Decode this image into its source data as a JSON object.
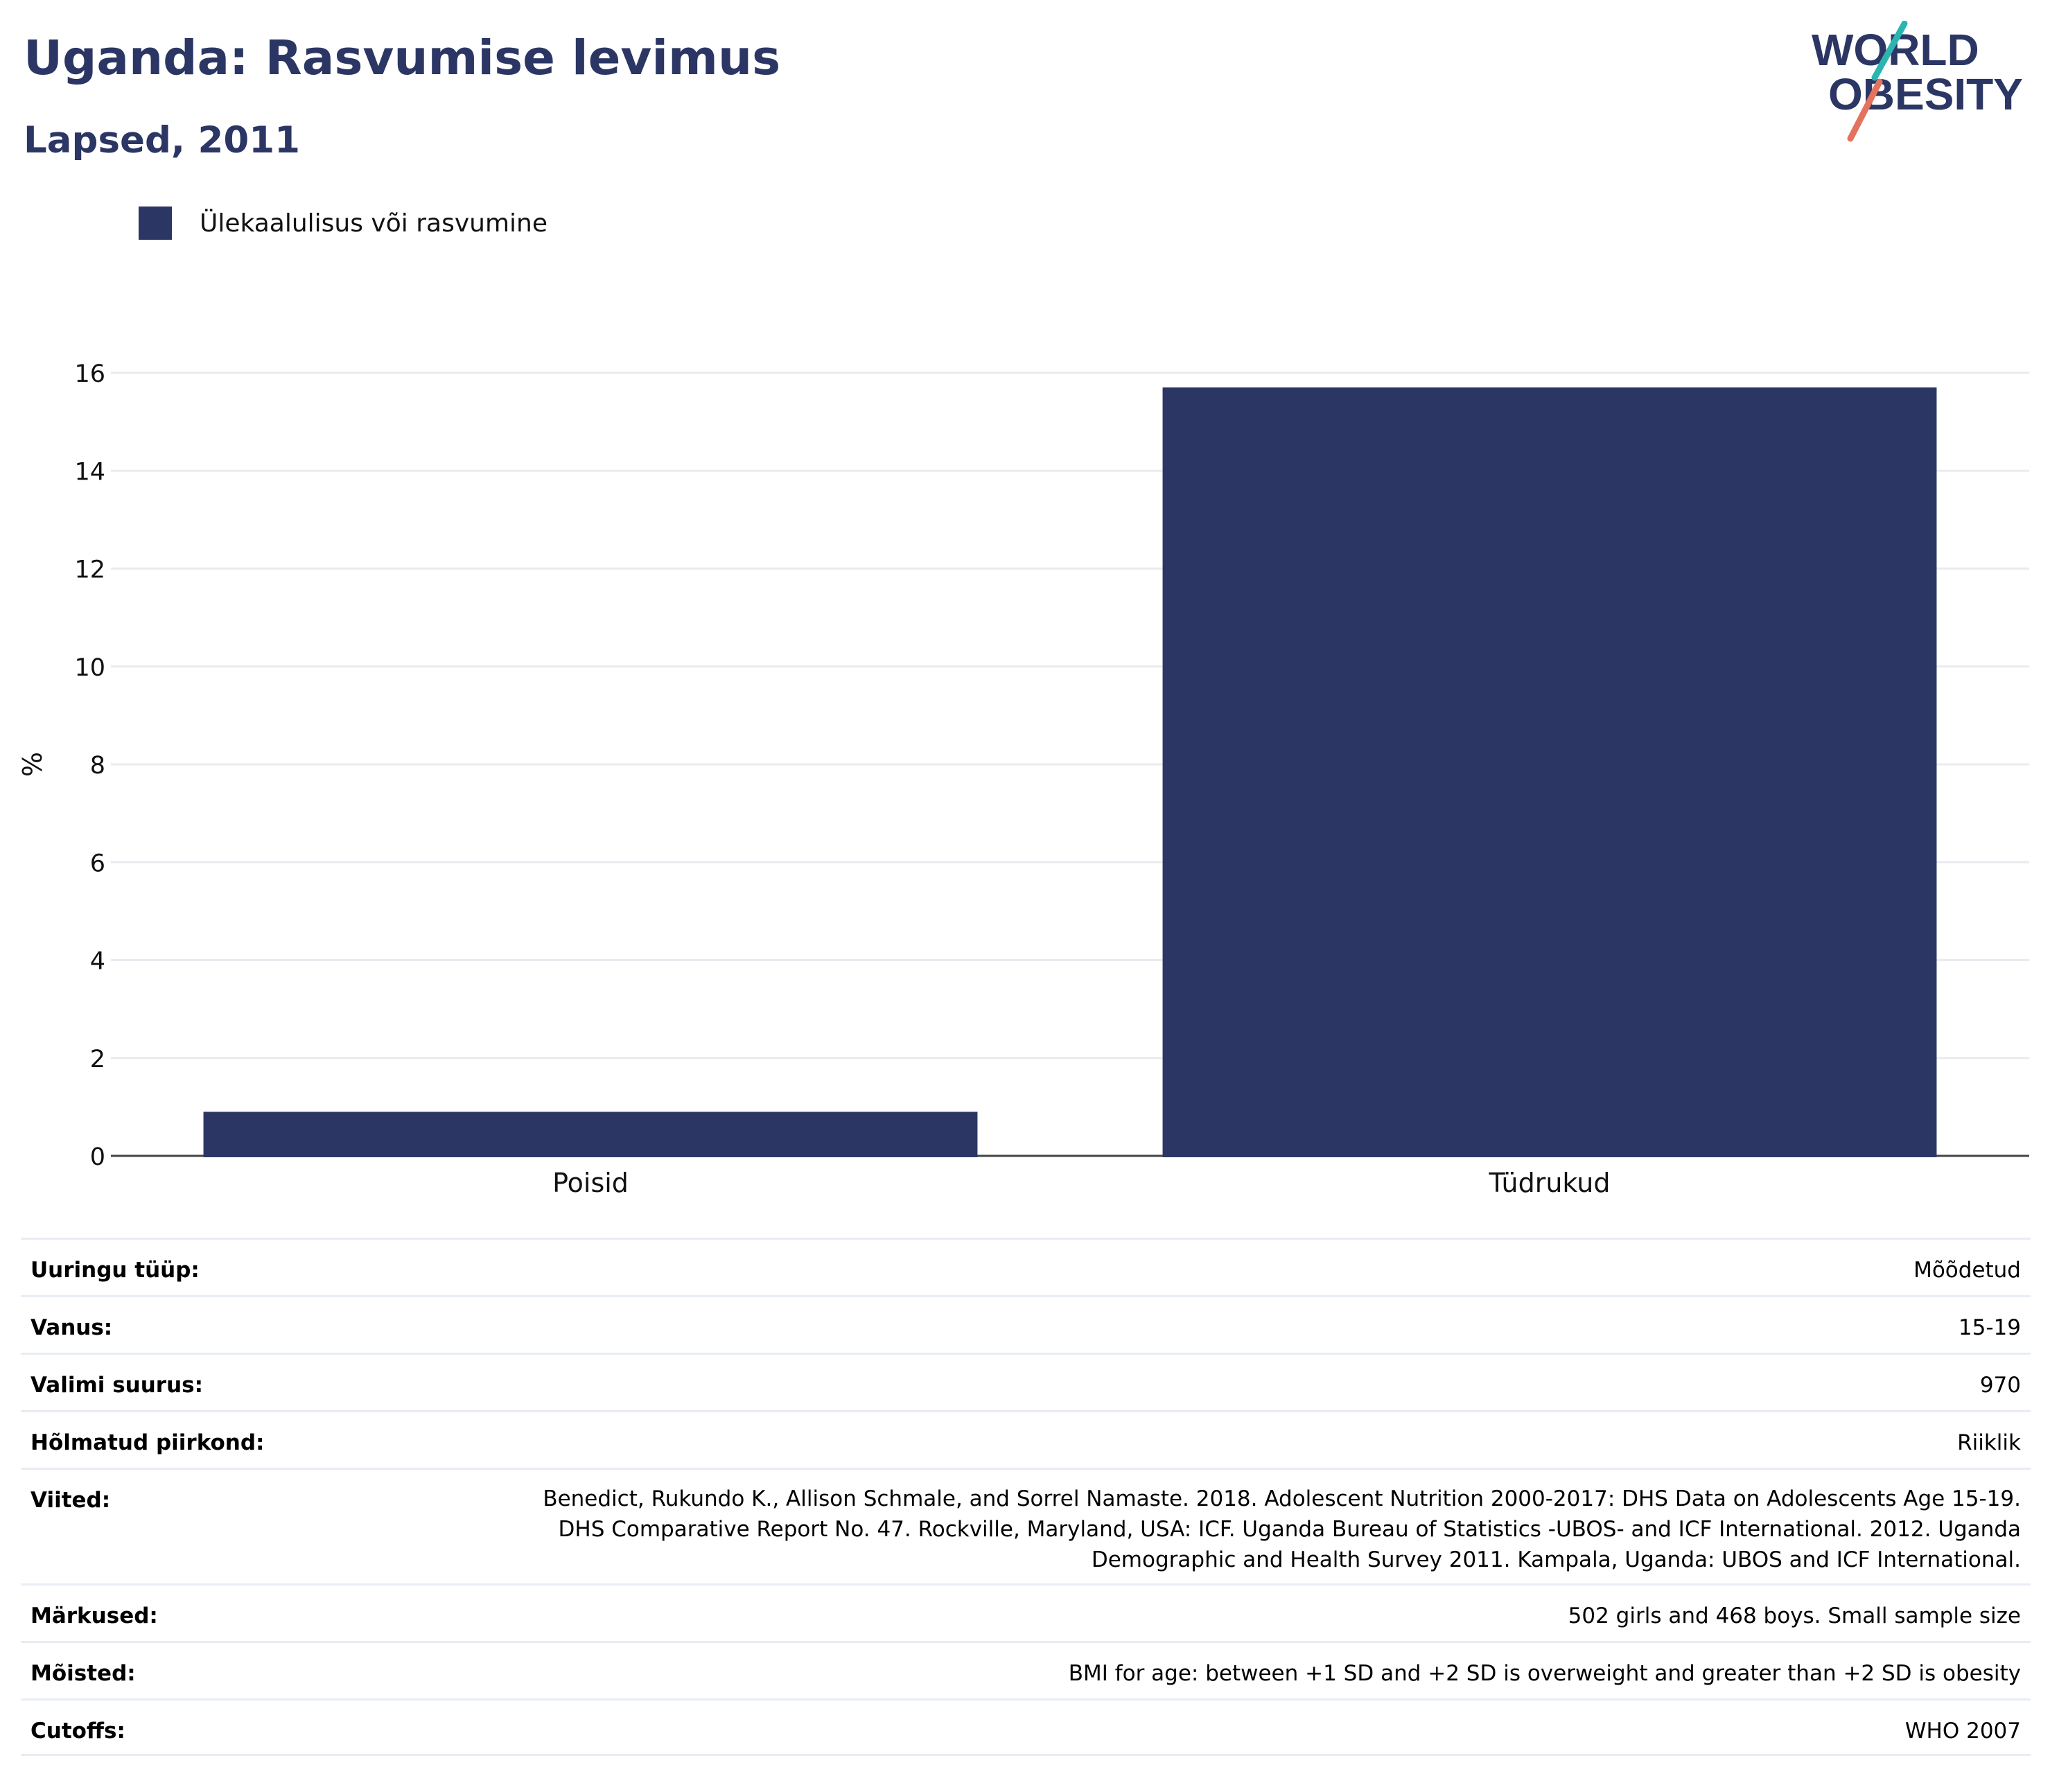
{
  "header": {
    "title": "Uganda: Rasvumise levimus",
    "subtitle": "Lapsed, 2011"
  },
  "logo": {
    "line1": "WORLD",
    "line2": "OBESITY"
  },
  "chart_data": {
    "type": "bar",
    "categories": [
      "Poisid",
      "Tüdrukud"
    ],
    "series": [
      {
        "name": "Ülekaalulisus või rasvumine",
        "values": [
          0.9,
          15.7
        ],
        "color": "#2b3664"
      }
    ],
    "ylabel": "%",
    "ylim": [
      0,
      16
    ],
    "yticks": [
      0,
      2,
      4,
      6,
      8,
      10,
      12,
      14,
      16
    ],
    "grid": true,
    "legend": "top-left"
  },
  "info": {
    "rows": [
      {
        "label": "Uuringu tüüp:",
        "value": "Mõõdetud"
      },
      {
        "label": "Vanus:",
        "value": "15-19"
      },
      {
        "label": "Valimi suurus:",
        "value": "970"
      },
      {
        "label": "Hõlmatud piirkond:",
        "value": "Riiklik"
      },
      {
        "label": "Viited:",
        "value": "Benedict, Rukundo K., Allison Schmale, and Sorrel Namaste. 2018. Adolescent Nutrition 2000-2017: DHS Data on Adolescents Age 15-19. DHS Comparative Report No. 47. Rockville, Maryland, USA: ICF. Uganda Bureau of Statistics -UBOS- and ICF International. 2012. Uganda Demographic and Health Survey 2011. Kampala, Uganda: UBOS and ICF International."
      },
      {
        "label": "Märkused:",
        "value": "502 girls and 468 boys. Small sample size"
      },
      {
        "label": "Mõisted:",
        "value": "BMI for age: between +1 SD and +2 SD is overweight and greater than +2 SD is obesity"
      },
      {
        "label": "Cutoffs:",
        "value": "WHO 2007"
      }
    ]
  }
}
